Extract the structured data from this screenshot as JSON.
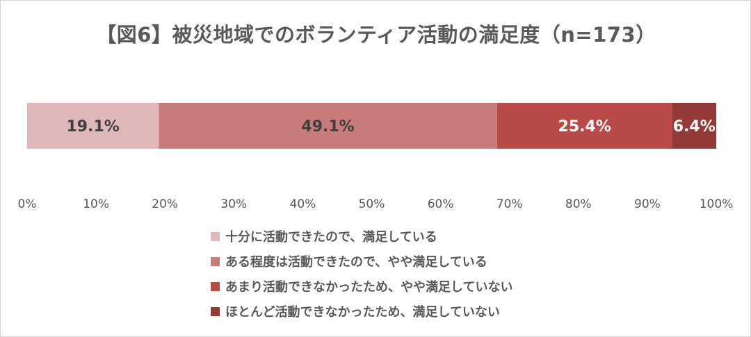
{
  "chart_data": {
    "type": "bar",
    "orientation": "horizontal-stacked-100",
    "title": "【図6】被災地域でのボランティア活動の満足度（n=173）",
    "xlabel": "",
    "ylabel": "",
    "xlim": [
      0,
      100
    ],
    "x_ticks": [
      "0%",
      "10%",
      "20%",
      "30%",
      "40%",
      "50%",
      "60%",
      "70%",
      "80%",
      "90%",
      "100%"
    ],
    "grid": false,
    "legend_position": "bottom",
    "series": [
      {
        "name": "十分に活動できたので、満足している",
        "value": 19.1,
        "label": "19.1%",
        "color": "#e0b7b8",
        "label_color": "#404040"
      },
      {
        "name": "ある程度は活動できたので、やや満足している",
        "value": 49.1,
        "label": "49.1%",
        "color": "#c97b7c",
        "label_color": "#404040"
      },
      {
        "name": "あまり活動できなかったため、やや満足していない",
        "value": 25.4,
        "label": "25.4%",
        "color": "#b94a48",
        "label_color": "#ffffff"
      },
      {
        "name": "ほとんど活動できなかったため、満足していない",
        "value": 6.4,
        "label": "6.4%",
        "color": "#943a38",
        "label_color": "#ffffff"
      }
    ]
  }
}
